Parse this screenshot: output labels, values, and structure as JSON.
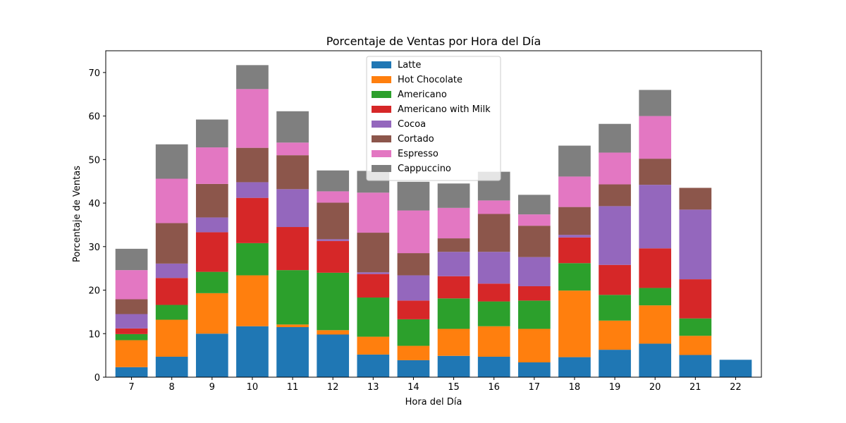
{
  "chart_data": {
    "type": "bar",
    "stacked": true,
    "title": "Porcentaje de Ventas por Hora del Día",
    "xlabel": "Hora del Día",
    "ylabel": "Porcentaje de Ventas",
    "ylim": [
      0,
      75
    ],
    "yticks": [
      0,
      10,
      20,
      30,
      40,
      50,
      60,
      70
    ],
    "grid": false,
    "legend_position": "top-center",
    "categories": [
      "7",
      "8",
      "9",
      "10",
      "11",
      "12",
      "13",
      "14",
      "15",
      "16",
      "17",
      "18",
      "19",
      "20",
      "21",
      "22"
    ],
    "series": [
      {
        "name": "Latte",
        "color": "#1f77b4",
        "values": [
          2.3,
          4.7,
          10.0,
          11.7,
          11.5,
          9.8,
          5.2,
          3.9,
          4.9,
          4.7,
          3.4,
          4.6,
          6.3,
          7.7,
          5.1,
          4.0
        ]
      },
      {
        "name": "Hot Chocolate",
        "color": "#ff7f0e",
        "values": [
          6.2,
          8.5,
          9.3,
          11.7,
          0.6,
          1.0,
          4.1,
          3.3,
          6.2,
          7.0,
          7.7,
          15.3,
          6.7,
          8.8,
          4.4,
          0
        ]
      },
      {
        "name": "Americano",
        "color": "#2ca02c",
        "values": [
          1.4,
          3.4,
          4.9,
          7.4,
          12.5,
          13.2,
          9.0,
          6.1,
          7.0,
          5.7,
          6.5,
          6.3,
          5.9,
          4.0,
          4.0,
          0
        ]
      },
      {
        "name": "Americano with Milk",
        "color": "#d62728",
        "values": [
          1.3,
          6.2,
          9.1,
          10.4,
          9.9,
          7.3,
          5.4,
          4.3,
          5.1,
          4.1,
          3.3,
          5.9,
          6.9,
          9.1,
          9.0,
          0
        ]
      },
      {
        "name": "Cocoa",
        "color": "#9467bd",
        "values": [
          3.3,
          3.3,
          3.4,
          3.6,
          8.7,
          0.4,
          0.4,
          5.8,
          5.6,
          7.3,
          6.7,
          0.6,
          13.5,
          14.6,
          16.0,
          0
        ]
      },
      {
        "name": "Cortado",
        "color": "#8c564b",
        "values": [
          3.4,
          9.3,
          7.7,
          7.9,
          7.8,
          8.4,
          9.1,
          5.1,
          3.1,
          8.7,
          7.2,
          6.4,
          5.0,
          6.0,
          5.0,
          0
        ]
      },
      {
        "name": "Espresso",
        "color": "#e377c2",
        "values": [
          6.7,
          10.2,
          8.4,
          13.5,
          2.9,
          2.6,
          9.2,
          9.8,
          7.0,
          3.1,
          2.6,
          7.0,
          7.3,
          9.8,
          0,
          0
        ]
      },
      {
        "name": "Cappuccino",
        "color": "#7f7f7f",
        "values": [
          4.9,
          7.9,
          6.4,
          5.5,
          7.2,
          4.8,
          5.0,
          6.6,
          5.6,
          6.6,
          4.5,
          7.1,
          6.6,
          6.0,
          0,
          0
        ]
      }
    ]
  }
}
